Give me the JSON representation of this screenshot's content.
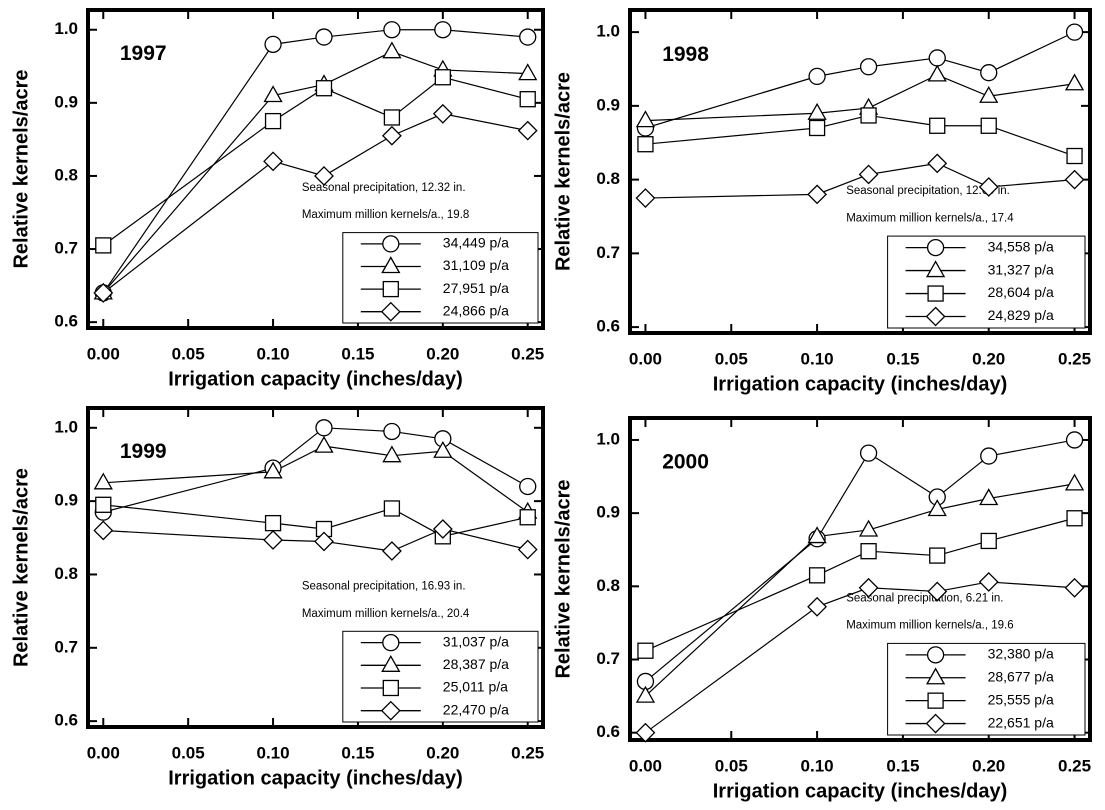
{
  "chart_data": [
    {
      "type": "line",
      "title": "1997",
      "annotations": [
        "Seasonal precipitation, 12.32 in.",
        "Maximum million kernels/a., 19.8"
      ],
      "x_label": "Irrigation capacity (inches/day)",
      "y_label": "Relative kernels/acre",
      "x": [
        0,
        0.1,
        0.13,
        0.17,
        0.2,
        0.25
      ],
      "series": [
        {
          "name": "34,449 p/a",
          "color": "#000000",
          "marker": "circle",
          "values": [
            0.64,
            0.98,
            0.99,
            1.0,
            1.0,
            0.99
          ]
        },
        {
          "name": "31,109 p/a",
          "color": "#000000",
          "marker": "triangle",
          "values": [
            0.64,
            0.91,
            0.925,
            0.97,
            0.945,
            0.94
          ]
        },
        {
          "name": "27,951 p/a",
          "color": "#000000",
          "marker": "square",
          "values": [
            0.705,
            0.875,
            0.92,
            0.88,
            0.935,
            0.905
          ]
        },
        {
          "name": "24,866 p/a",
          "color": "#000000",
          "marker": "diamond",
          "values": [
            0.64,
            0.82,
            0.8,
            0.855,
            0.885,
            0.862
          ]
        }
      ],
      "xlim": [
        -0.009,
        0.259
      ],
      "ylim": [
        0.592,
        1.027
      ],
      "xticks": [
        {
          "value": 0,
          "label": "0.00"
        },
        0.05,
        {
          "value": 0.1,
          "label": "0.10"
        },
        0.15,
        {
          "value": 0.2,
          "label": "0.20"
        },
        0.25
      ],
      "yticks": [
        0.6,
        0.7,
        0.8,
        0.9,
        {
          "value": 1,
          "label": "1.0"
        }
      ]
    },
    {
      "type": "line",
      "title": "1998",
      "annotations": [
        "Seasonal precipitation, 12.69 in.",
        "Maximum million kernels/a., 17.4"
      ],
      "x_label": "Irrigation capacity (inches/day)",
      "y_label": "Relative kernels/acre",
      "x": [
        0,
        0.1,
        0.13,
        0.17,
        0.2,
        0.25
      ],
      "series": [
        {
          "name": "34,558 p/a",
          "color": "#000000",
          "marker": "circle",
          "values": [
            0.87,
            0.94,
            0.953,
            0.965,
            0.945,
            1.0
          ]
        },
        {
          "name": "31,327 p/a",
          "color": "#000000",
          "marker": "triangle",
          "values": [
            0.88,
            0.89,
            0.897,
            0.942,
            0.913,
            0.93
          ]
        },
        {
          "name": "28,604 p/a",
          "color": "#000000",
          "marker": "square",
          "values": [
            0.848,
            0.87,
            0.887,
            0.873,
            0.873,
            0.832
          ]
        },
        {
          "name": "24,829 p/a",
          "color": "#000000",
          "marker": "diamond",
          "values": [
            0.775,
            0.78,
            0.807,
            0.822,
            0.79,
            0.8
          ]
        }
      ],
      "xlim": [
        -0.009,
        0.259
      ],
      "ylim": [
        0.592,
        1.03
      ],
      "xticks": [
        {
          "value": 0,
          "label": "0.00"
        },
        0.05,
        {
          "value": 0.1,
          "label": "0.10"
        },
        0.15,
        {
          "value": 0.2,
          "label": "0.20"
        },
        0.25
      ],
      "yticks": [
        0.6,
        0.7,
        0.8,
        0.9,
        {
          "value": 1,
          "label": "1.0"
        }
      ]
    },
    {
      "type": "line",
      "title": "1999",
      "annotations": [
        "Seasonal precipitation, 16.93 in.",
        "Maximum million kernels/a., 20.4"
      ],
      "x_label": "Irrigation capacity (inches/day)",
      "y_label": "Relative kernels/acre",
      "x": [
        0,
        0.1,
        0.13,
        0.17,
        0.2,
        0.25
      ],
      "series": [
        {
          "name": "31,037 p/a",
          "color": "#000000",
          "marker": "circle",
          "values": [
            0.885,
            0.945,
            1.0,
            0.995,
            0.985,
            0.92
          ]
        },
        {
          "name": "28,387 p/a",
          "color": "#000000",
          "marker": "triangle",
          "values": [
            0.925,
            0.94,
            0.975,
            0.962,
            0.968,
            0.885
          ]
        },
        {
          "name": "25,011 p/a",
          "color": "#000000",
          "marker": "square",
          "values": [
            0.895,
            0.87,
            0.862,
            0.89,
            0.852,
            0.878
          ]
        },
        {
          "name": "22,470 p/a",
          "color": "#000000",
          "marker": "diamond",
          "values": [
            0.86,
            0.847,
            0.845,
            0.832,
            0.862,
            0.834
          ]
        }
      ],
      "xlim": [
        -0.009,
        0.259
      ],
      "ylim": [
        0.592,
        1.027
      ],
      "xticks": [
        {
          "value": 0,
          "label": "0.00"
        },
        0.05,
        {
          "value": 0.1,
          "label": "0.10"
        },
        0.15,
        {
          "value": 0.2,
          "label": "0.20"
        },
        0.25
      ],
      "yticks": [
        0.6,
        0.7,
        0.8,
        0.9,
        {
          "value": 1,
          "label": "1.0"
        }
      ]
    },
    {
      "type": "line",
      "title": "2000",
      "annotations": [
        "Seasonal precipitation, 6.21 in.",
        "Maximum million kernels/a., 19.6"
      ],
      "x_label": "Irrigation capacity (inches/day)",
      "y_label": "Relative kernels/acre",
      "x": [
        0,
        0.1,
        0.13,
        0.17,
        0.2,
        0.25
      ],
      "series": [
        {
          "name": "32,380 p/a",
          "color": "#000000",
          "marker": "circle",
          "values": [
            0.67,
            0.865,
            0.982,
            0.922,
            0.978,
            1.0
          ]
        },
        {
          "name": "28,677 p/a",
          "color": "#000000",
          "marker": "triangle",
          "values": [
            0.65,
            0.868,
            0.877,
            0.905,
            0.92,
            0.94
          ]
        },
        {
          "name": "25,555 p/a",
          "color": "#000000",
          "marker": "square",
          "values": [
            0.712,
            0.815,
            0.848,
            0.842,
            0.862,
            0.893
          ]
        },
        {
          "name": "22,651 p/a",
          "color": "#000000",
          "marker": "diamond",
          "values": [
            0.6,
            0.772,
            0.798,
            0.793,
            0.806,
            0.798
          ]
        }
      ],
      "xlim": [
        -0.009,
        0.259
      ],
      "ylim": [
        0.59,
        1.03
      ],
      "xticks": [
        {
          "value": 0,
          "label": "0.00"
        },
        0.05,
        {
          "value": 0.1,
          "label": "0.10"
        },
        0.15,
        {
          "value": 0.2,
          "label": "0.20"
        },
        0.25
      ],
      "yticks": [
        0.6,
        0.7,
        0.8,
        0.9,
        {
          "value": 1,
          "label": "1.0"
        }
      ]
    }
  ]
}
